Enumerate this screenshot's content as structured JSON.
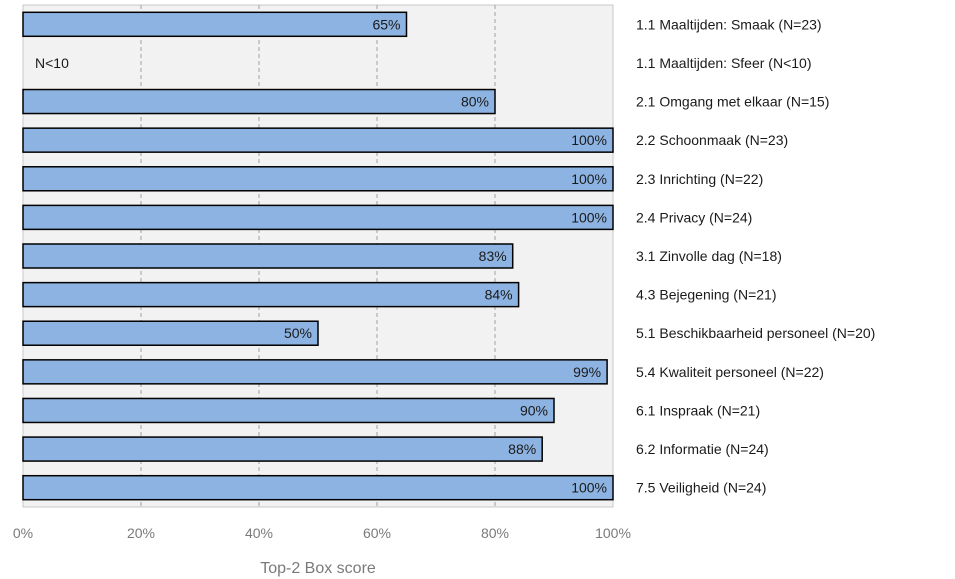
{
  "chart_data": {
    "type": "bar",
    "orientation": "horizontal",
    "categories": [
      "1.1 Maaltijden: Smaak (N=23)",
      "1.1 Maaltijden: Sfeer (N<10)",
      "2.1 Omgang met elkaar (N=15)",
      "2.2 Schoonmaak (N=23)",
      "2.3 Inrichting (N=22)",
      "2.4 Privacy (N=24)",
      "3.1 Zinvolle dag (N=18)",
      "4.3 Bejegening (N=21)",
      "5.1 Beschikbaarheid personeel (N=20)",
      "5.4 Kwaliteit personeel (N=22)",
      "6.1 Inspraak (N=21)",
      "6.2 Informatie (N=24)",
      "7.5 Veiligheid (N=24)"
    ],
    "values": [
      65,
      null,
      80,
      100,
      100,
      100,
      83,
      84,
      50,
      99,
      90,
      88,
      100
    ],
    "value_labels": [
      "65%",
      "N<10",
      "80%",
      "100%",
      "100%",
      "100%",
      "83%",
      "84%",
      "50%",
      "99%",
      "90%",
      "88%",
      "100%"
    ],
    "x_ticks": [
      "0%",
      "20%",
      "40%",
      "60%",
      "80%",
      "100%"
    ],
    "xlim": [
      0,
      100
    ],
    "xlabel": "Top-2 Box score",
    "grid": "vertical dashed",
    "bar_color": "#8db3e2",
    "bar_border_color": "#000000",
    "plot_background": "#f2f2f2"
  }
}
